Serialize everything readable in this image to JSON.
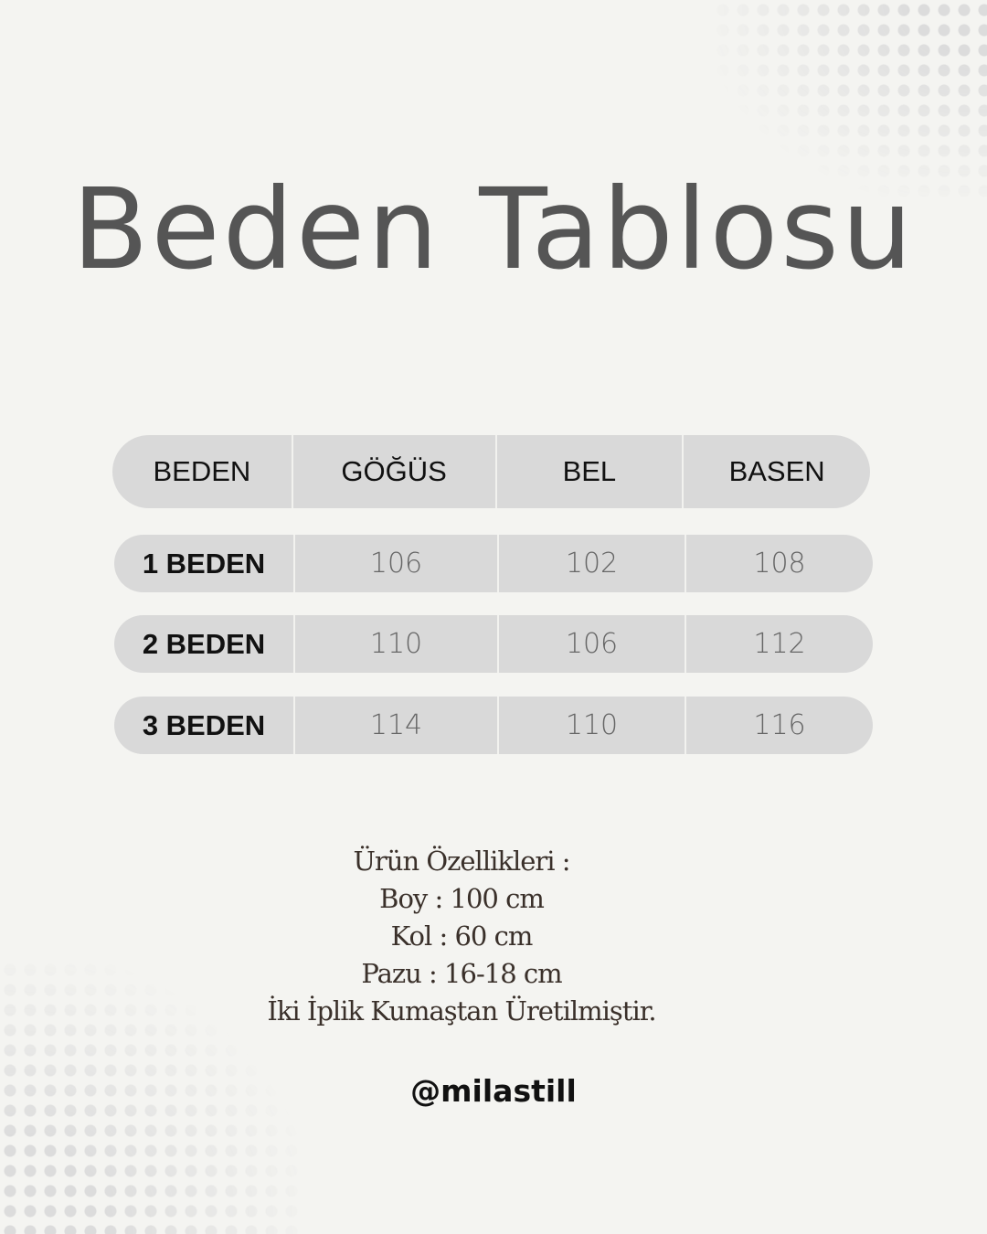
{
  "title": "Beden Tablosu",
  "table": {
    "headers": [
      "BEDEN",
      "GÖĞÜS",
      "BEL",
      "BASEN"
    ],
    "rows": [
      [
        "1 BEDEN",
        "106",
        "102",
        "108"
      ],
      [
        "2 BEDEN",
        "110",
        "106",
        "112"
      ],
      [
        "3 BEDEN",
        "114",
        "110",
        "116"
      ]
    ]
  },
  "info": {
    "lines": [
      "Ürün Özellikleri :",
      "Boy : 100 cm",
      "Kol : 60 cm",
      "Pazu : 16-18 cm",
      "İki İplik Kumaştan Üretilmiştir."
    ]
  },
  "handle": "@milastill",
  "colors": {
    "background": "#f4f4f1",
    "row_fill": "#d9d9d9",
    "title": "#555555",
    "info_text": "#3a302a"
  }
}
